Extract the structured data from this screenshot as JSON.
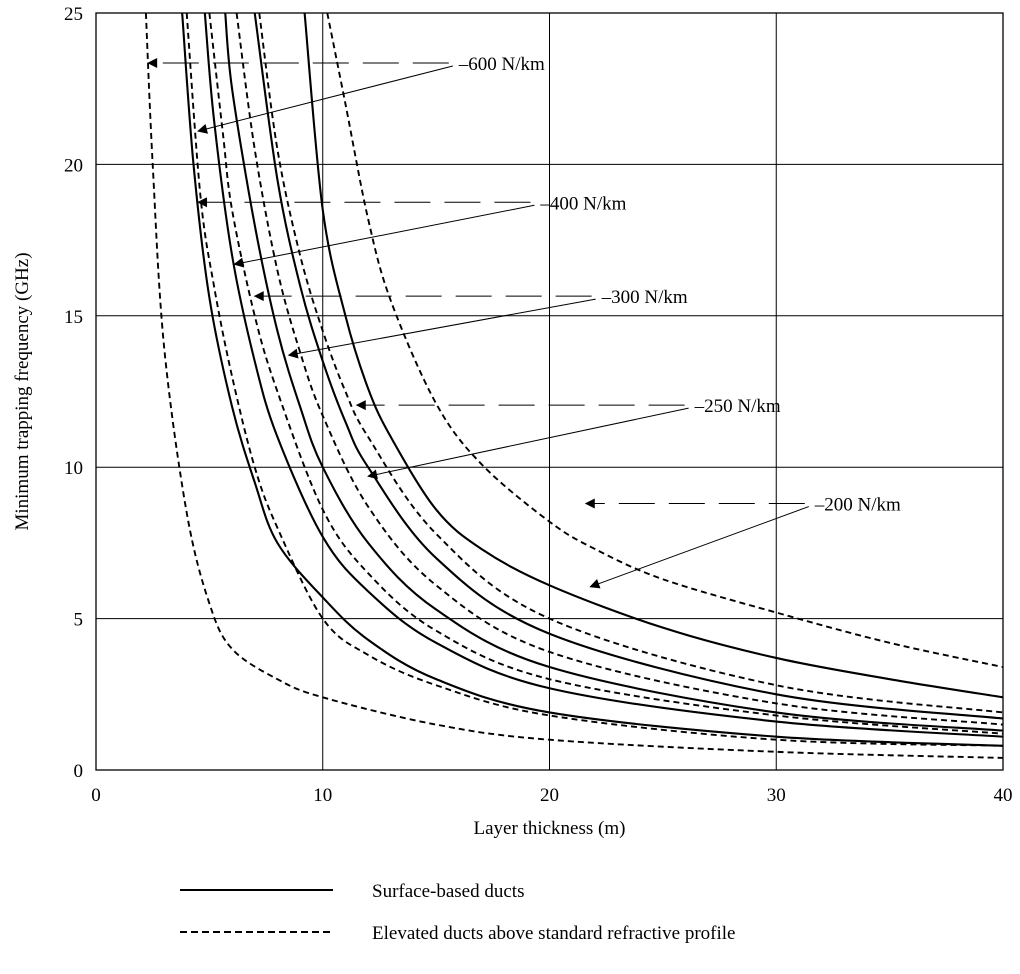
{
  "chart_data": {
    "type": "line",
    "title": "",
    "xlabel": "Layer thickness (m)",
    "ylabel": "Minimum trapping frequency (GHz)",
    "xlim": [
      0,
      40
    ],
    "ylim": [
      0,
      25
    ],
    "xticks": [
      "0",
      "10",
      "20",
      "30",
      "40"
    ],
    "yticks": [
      "0",
      "5",
      "10",
      "15",
      "20",
      "25"
    ],
    "grid": true,
    "legend_position": "bottom",
    "legend": [
      {
        "label": "Surface-based ducts",
        "style": "solid"
      },
      {
        "label": "Elevated ducts above standard refractive profile",
        "style": "dashed"
      }
    ],
    "series": [
      {
        "style": "dashed",
        "gradient": "-600 N/km",
        "x": [
          2.2,
          2.5,
          3,
          4,
          5,
          6,
          8,
          10,
          15,
          20,
          30,
          40
        ],
        "y": [
          25,
          20,
          14,
          8.5,
          5.5,
          4,
          3,
          2.4,
          1.5,
          1,
          0.6,
          0.4
        ]
      },
      {
        "style": "solid",
        "gradient": "-600 N/km",
        "x": [
          3.8,
          4.3,
          5,
          6,
          7,
          8,
          10,
          12,
          15,
          20,
          30,
          40
        ],
        "y": [
          25,
          20,
          15.6,
          12,
          9.5,
          7.5,
          5.7,
          4.3,
          3,
          1.9,
          1.1,
          0.8
        ]
      },
      {
        "style": "dashed",
        "gradient": "-400 N/km",
        "x": [
          4.0,
          4.6,
          5.2,
          6,
          7,
          8,
          10,
          12,
          15,
          20,
          30,
          40
        ],
        "y": [
          25,
          19,
          16,
          13,
          10,
          8,
          5,
          3.8,
          2.8,
          1.8,
          1,
          0.8
        ]
      },
      {
        "style": "solid",
        "gradient": "-400 N/km",
        "x": [
          4.8,
          5.2,
          6,
          7,
          8,
          10,
          12,
          15,
          20,
          30,
          40
        ],
        "y": [
          25,
          21.5,
          17,
          13.5,
          11,
          7.7,
          5.9,
          4.2,
          2.7,
          1.6,
          1.1
        ]
      },
      {
        "style": "dashed",
        "gradient": "-300 N/km",
        "x": [
          5.0,
          5.6,
          6,
          7,
          8,
          10,
          12,
          15,
          20,
          30,
          40
        ],
        "y": [
          25,
          21,
          18.5,
          15,
          12.5,
          8.6,
          6.5,
          4.6,
          3,
          1.8,
          1.2
        ]
      },
      {
        "style": "solid",
        "gradient": "-300 N/km",
        "x": [
          5.7,
          6,
          7,
          8,
          9,
          10,
          12,
          15,
          20,
          30,
          40
        ],
        "y": [
          25,
          22.5,
          18,
          14.5,
          12,
          10,
          7.5,
          5.3,
          3.4,
          1.9,
          1.3
        ]
      },
      {
        "style": "dashed",
        "gradient": "-250 N/km",
        "x": [
          6.2,
          7,
          8,
          9,
          10,
          12,
          15,
          20,
          30,
          40
        ],
        "y": [
          25,
          20.5,
          16.5,
          13.8,
          11.7,
          8.7,
          6.1,
          3.9,
          2.2,
          1.5
        ]
      },
      {
        "style": "solid",
        "gradient": "-250 N/km",
        "x": [
          7.0,
          8,
          9,
          10,
          11,
          12,
          15,
          20,
          30,
          40
        ],
        "y": [
          25,
          19.5,
          16,
          13.5,
          11.5,
          10,
          7,
          4.5,
          2.5,
          1.7
        ]
      },
      {
        "style": "dashed",
        "gradient": "-200 N/km",
        "x": [
          7.2,
          8,
          9,
          10,
          11,
          12,
          15,
          20,
          30,
          40
        ],
        "y": [
          25,
          20.5,
          17,
          14.5,
          12.5,
          11,
          7.8,
          5,
          2.8,
          1.9
        ]
      },
      {
        "style": "solid",
        "gradient": "-200 N/km",
        "x": [
          9.2,
          10,
          11,
          12,
          13,
          15,
          17,
          20,
          25,
          30,
          35,
          40
        ],
        "y": [
          25,
          18.5,
          15,
          12.6,
          11,
          8.6,
          7.3,
          6.1,
          4.7,
          3.7,
          3,
          2.4
        ]
      },
      {
        "style": "dashed",
        "gradient": "-200 N/km",
        "x": [
          10.2,
          11,
          12,
          13,
          15,
          17,
          20,
          22,
          25,
          30,
          35,
          40
        ],
        "y": [
          25,
          22,
          18.2,
          15.5,
          12.1,
          10.1,
          8.2,
          7.3,
          6.3,
          5.2,
          4.2,
          3.4
        ]
      }
    ],
    "annotations": [
      {
        "text": "–600 N/km",
        "x": 16.0,
        "y": 23.35,
        "dashed_to": [
          2.3,
          23.35
        ],
        "solid_to": [
          4.5,
          21.1
        ]
      },
      {
        "text": "–400 N/km",
        "x": 19.6,
        "y": 18.75,
        "dashed_to": [
          4.5,
          18.75
        ],
        "solid_to": [
          6.1,
          16.7
        ]
      },
      {
        "text": "–300 N/km",
        "x": 22.3,
        "y": 15.65,
        "dashed_to": [
          7.0,
          15.65
        ],
        "solid_to": [
          8.5,
          13.7
        ]
      },
      {
        "text": "–250 N/km",
        "x": 26.4,
        "y": 12.05,
        "dashed_to": [
          11.5,
          12.05
        ],
        "solid_to": [
          12.0,
          9.7
        ]
      },
      {
        "text": "–200 N/km",
        "x": 31.7,
        "y": 8.8,
        "dashed_to": [
          21.6,
          8.8
        ],
        "solid_to": [
          21.8,
          6.05
        ]
      }
    ]
  }
}
